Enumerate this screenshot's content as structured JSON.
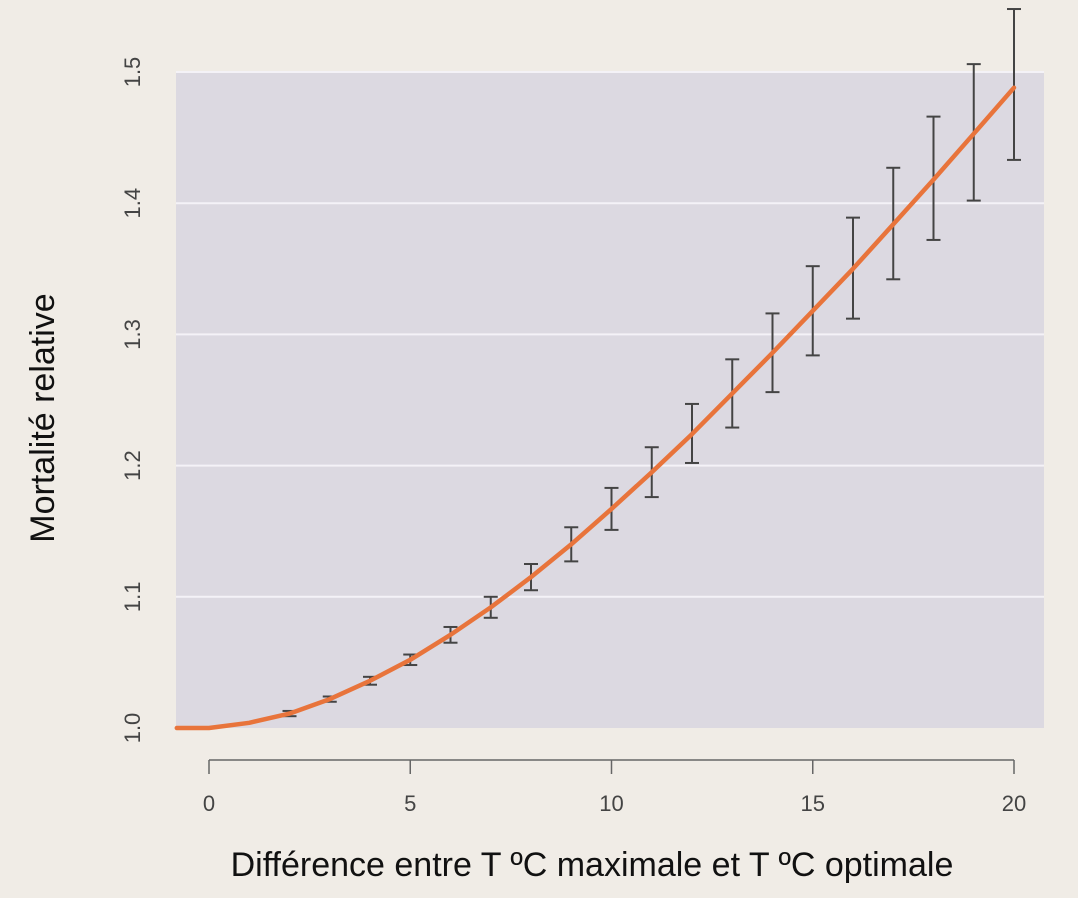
{
  "chart_data": {
    "type": "line",
    "title": "",
    "xlabel": "Différence entre T ºC maximale et T ºC optimale",
    "ylabel": "Mortalité relative",
    "xlim": [
      -0.8,
      20.8
    ],
    "ylim": [
      1.0,
      1.5
    ],
    "x_ticks": [
      "0",
      "5",
      "10",
      "15",
      "20"
    ],
    "y_ticks": [
      "1.0",
      "1.1",
      "1.2",
      "1.3",
      "1.4",
      "1.5"
    ],
    "grid": true,
    "colors": {
      "line": "#e8743b",
      "panel": "#dcd9e1",
      "errorbar": "#444444",
      "grid": "#f4f2f7"
    },
    "series": [
      {
        "x": [
          -0.8,
          0,
          1,
          2,
          3,
          4,
          5,
          6,
          7,
          8,
          9,
          10,
          11,
          12,
          13,
          14,
          15,
          16,
          17,
          18,
          19,
          20
        ],
        "values": [
          1.0,
          1.0,
          1.004,
          1.011,
          1.022,
          1.036,
          1.052,
          1.071,
          1.092,
          1.115,
          1.14,
          1.167,
          1.195,
          1.224,
          1.255,
          1.286,
          1.318,
          1.35,
          1.384,
          1.418,
          1.453,
          1.488
        ]
      }
    ],
    "error_bars": [
      {
        "x": 2,
        "low": 1.009,
        "high": 1.013
      },
      {
        "x": 3,
        "low": 1.02,
        "high": 1.024
      },
      {
        "x": 4,
        "low": 1.033,
        "high": 1.039
      },
      {
        "x": 5,
        "low": 1.048,
        "high": 1.056
      },
      {
        "x": 6,
        "low": 1.065,
        "high": 1.077
      },
      {
        "x": 7,
        "low": 1.084,
        "high": 1.1
      },
      {
        "x": 8,
        "low": 1.105,
        "high": 1.125
      },
      {
        "x": 9,
        "low": 1.127,
        "high": 1.153
      },
      {
        "x": 10,
        "low": 1.151,
        "high": 1.183
      },
      {
        "x": 11,
        "low": 1.176,
        "high": 1.214
      },
      {
        "x": 12,
        "low": 1.202,
        "high": 1.247
      },
      {
        "x": 13,
        "low": 1.229,
        "high": 1.281
      },
      {
        "x": 14,
        "low": 1.256,
        "high": 1.316
      },
      {
        "x": 15,
        "low": 1.284,
        "high": 1.352
      },
      {
        "x": 16,
        "low": 1.312,
        "high": 1.389
      },
      {
        "x": 17,
        "low": 1.342,
        "high": 1.427
      },
      {
        "x": 18,
        "low": 1.372,
        "high": 1.466
      },
      {
        "x": 19,
        "low": 1.402,
        "high": 1.506
      },
      {
        "x": 20,
        "low": 1.433,
        "high": 1.548
      }
    ]
  }
}
